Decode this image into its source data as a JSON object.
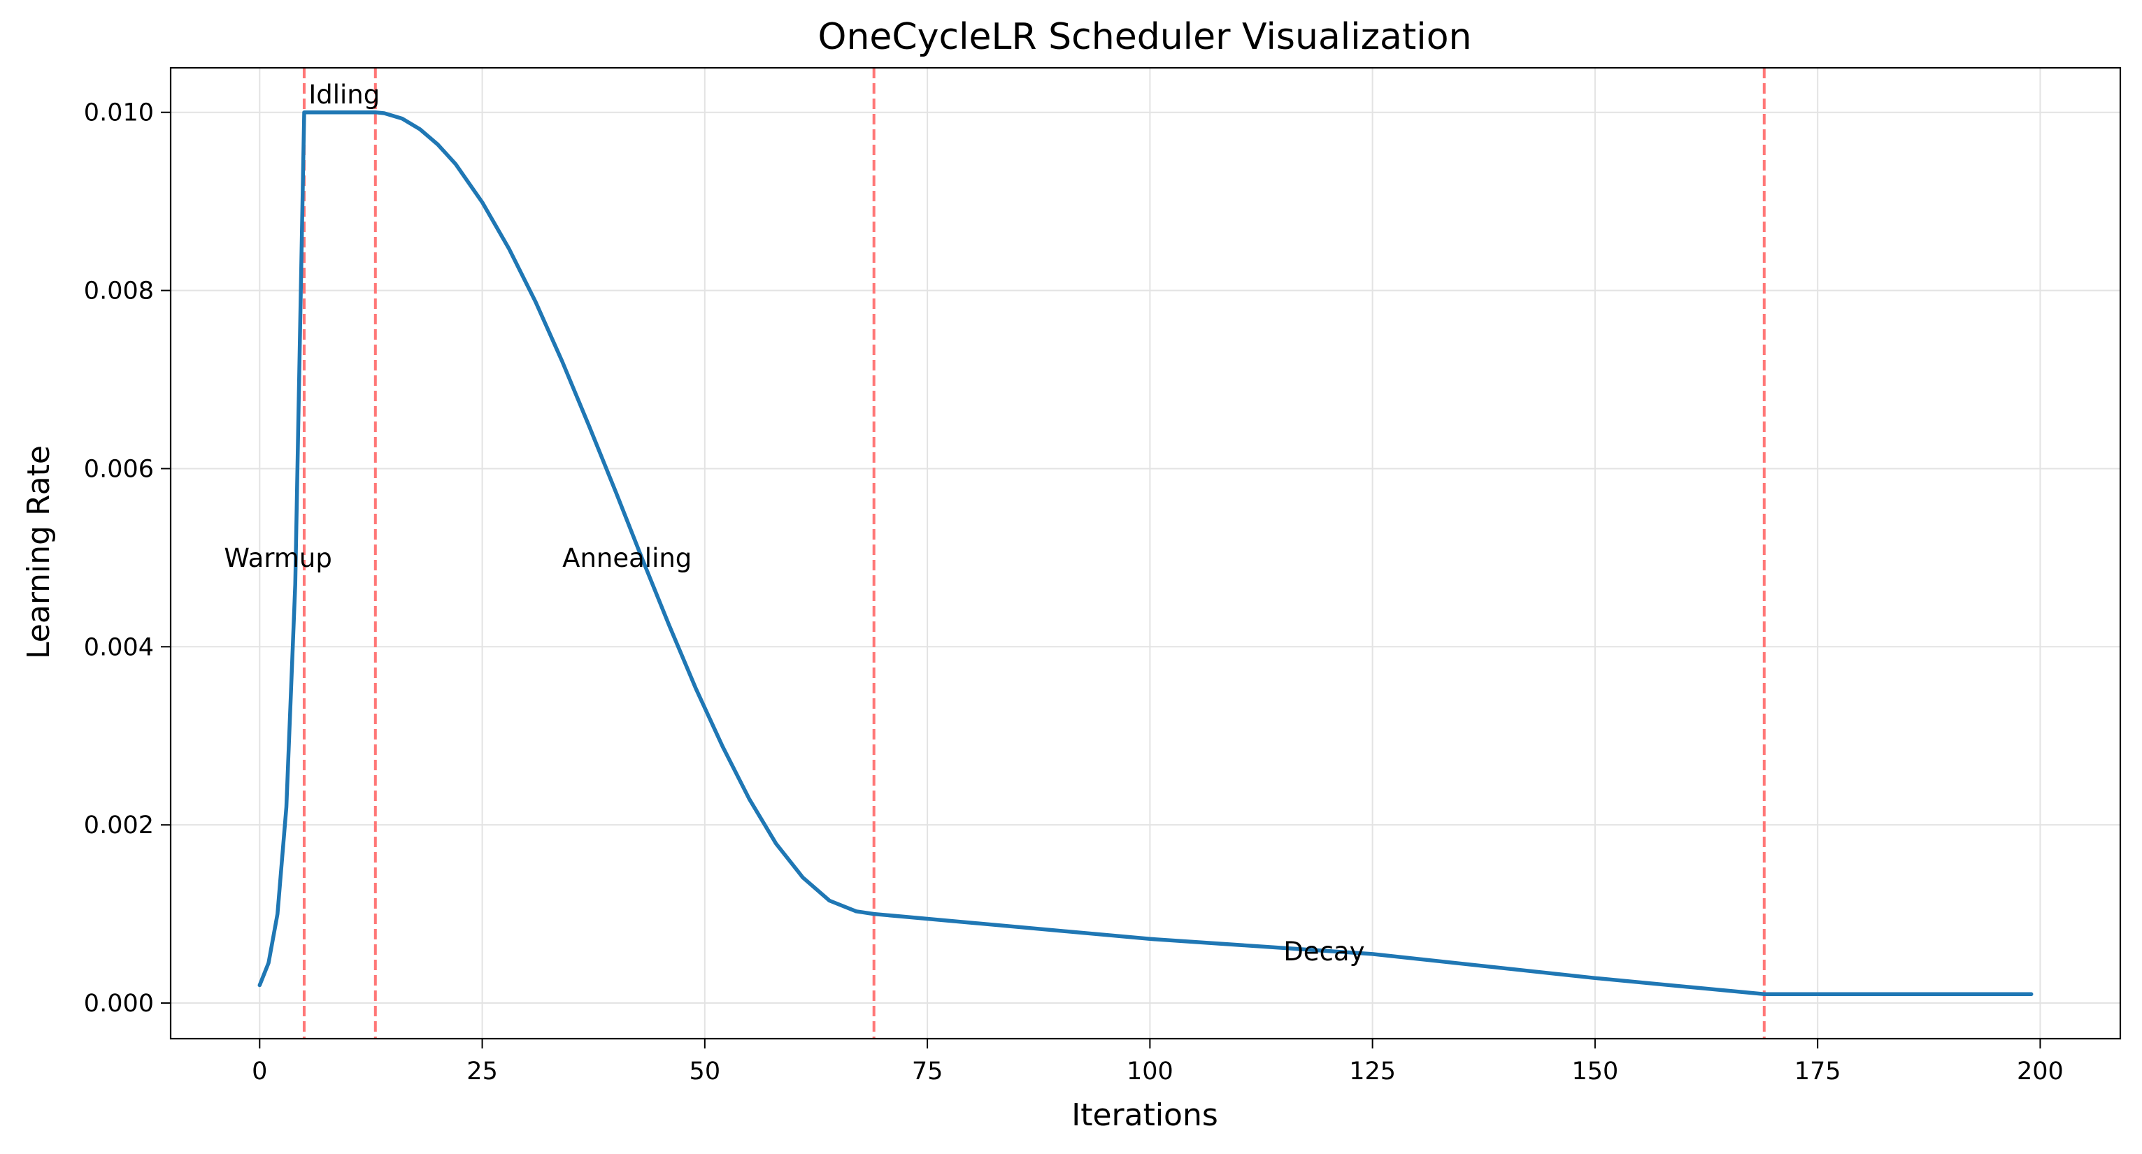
{
  "chart_data": {
    "type": "line",
    "title": "OneCycleLR Scheduler Visualization",
    "xlabel": "Iterations",
    "ylabel": "Learning Rate",
    "xlim": [
      -10,
      209
    ],
    "ylim": [
      -0.0004,
      0.0105
    ],
    "grid": true,
    "x_ticks": [
      0,
      25,
      50,
      75,
      100,
      125,
      150,
      175,
      200
    ],
    "x_tick_labels": [
      "0",
      "25",
      "50",
      "75",
      "100",
      "125",
      "150",
      "175",
      "200"
    ],
    "y_ticks": [
      0,
      0.002,
      0.004,
      0.006,
      0.008,
      0.01
    ],
    "y_tick_labels": [
      "0.000",
      "0.002",
      "0.004",
      "0.006",
      "0.008",
      "0.010"
    ],
    "series": [
      {
        "color": "#1f77b4",
        "x": [
          0,
          1,
          2,
          3,
          4,
          5,
          10,
          13,
          14,
          16,
          18,
          20,
          22,
          25,
          28,
          31,
          34,
          37,
          40,
          43,
          46,
          49,
          52,
          55,
          58,
          61,
          64,
          67,
          69,
          100,
          125,
          150,
          169,
          199
        ],
        "y": [
          0.0002,
          0.00045,
          0.001,
          0.0022,
          0.0047,
          0.01,
          0.01,
          0.01,
          0.00999,
          0.00993,
          0.00981,
          0.00964,
          0.00942,
          0.00899,
          0.00847,
          0.00787,
          0.0072,
          0.00648,
          0.00574,
          0.00498,
          0.00424,
          0.00353,
          0.00288,
          0.00229,
          0.00179,
          0.00141,
          0.00115,
          0.00103,
          0.001,
          0.00072,
          0.00055,
          0.00028,
          0.0001,
          0.0001
        ]
      }
    ],
    "phase_lines": {
      "x": [
        5,
        13,
        69,
        169
      ],
      "color": "#ff7777",
      "style": "dashed"
    },
    "annotations": [
      {
        "text": "Warmup",
        "x": -4,
        "y": 0.005
      },
      {
        "text": "Idling",
        "x": 5.5,
        "y": 0.0102
      },
      {
        "text": "Annealing",
        "x": 34,
        "y": 0.005
      },
      {
        "text": "Decay",
        "x": 115,
        "y": 0.00058
      }
    ]
  }
}
